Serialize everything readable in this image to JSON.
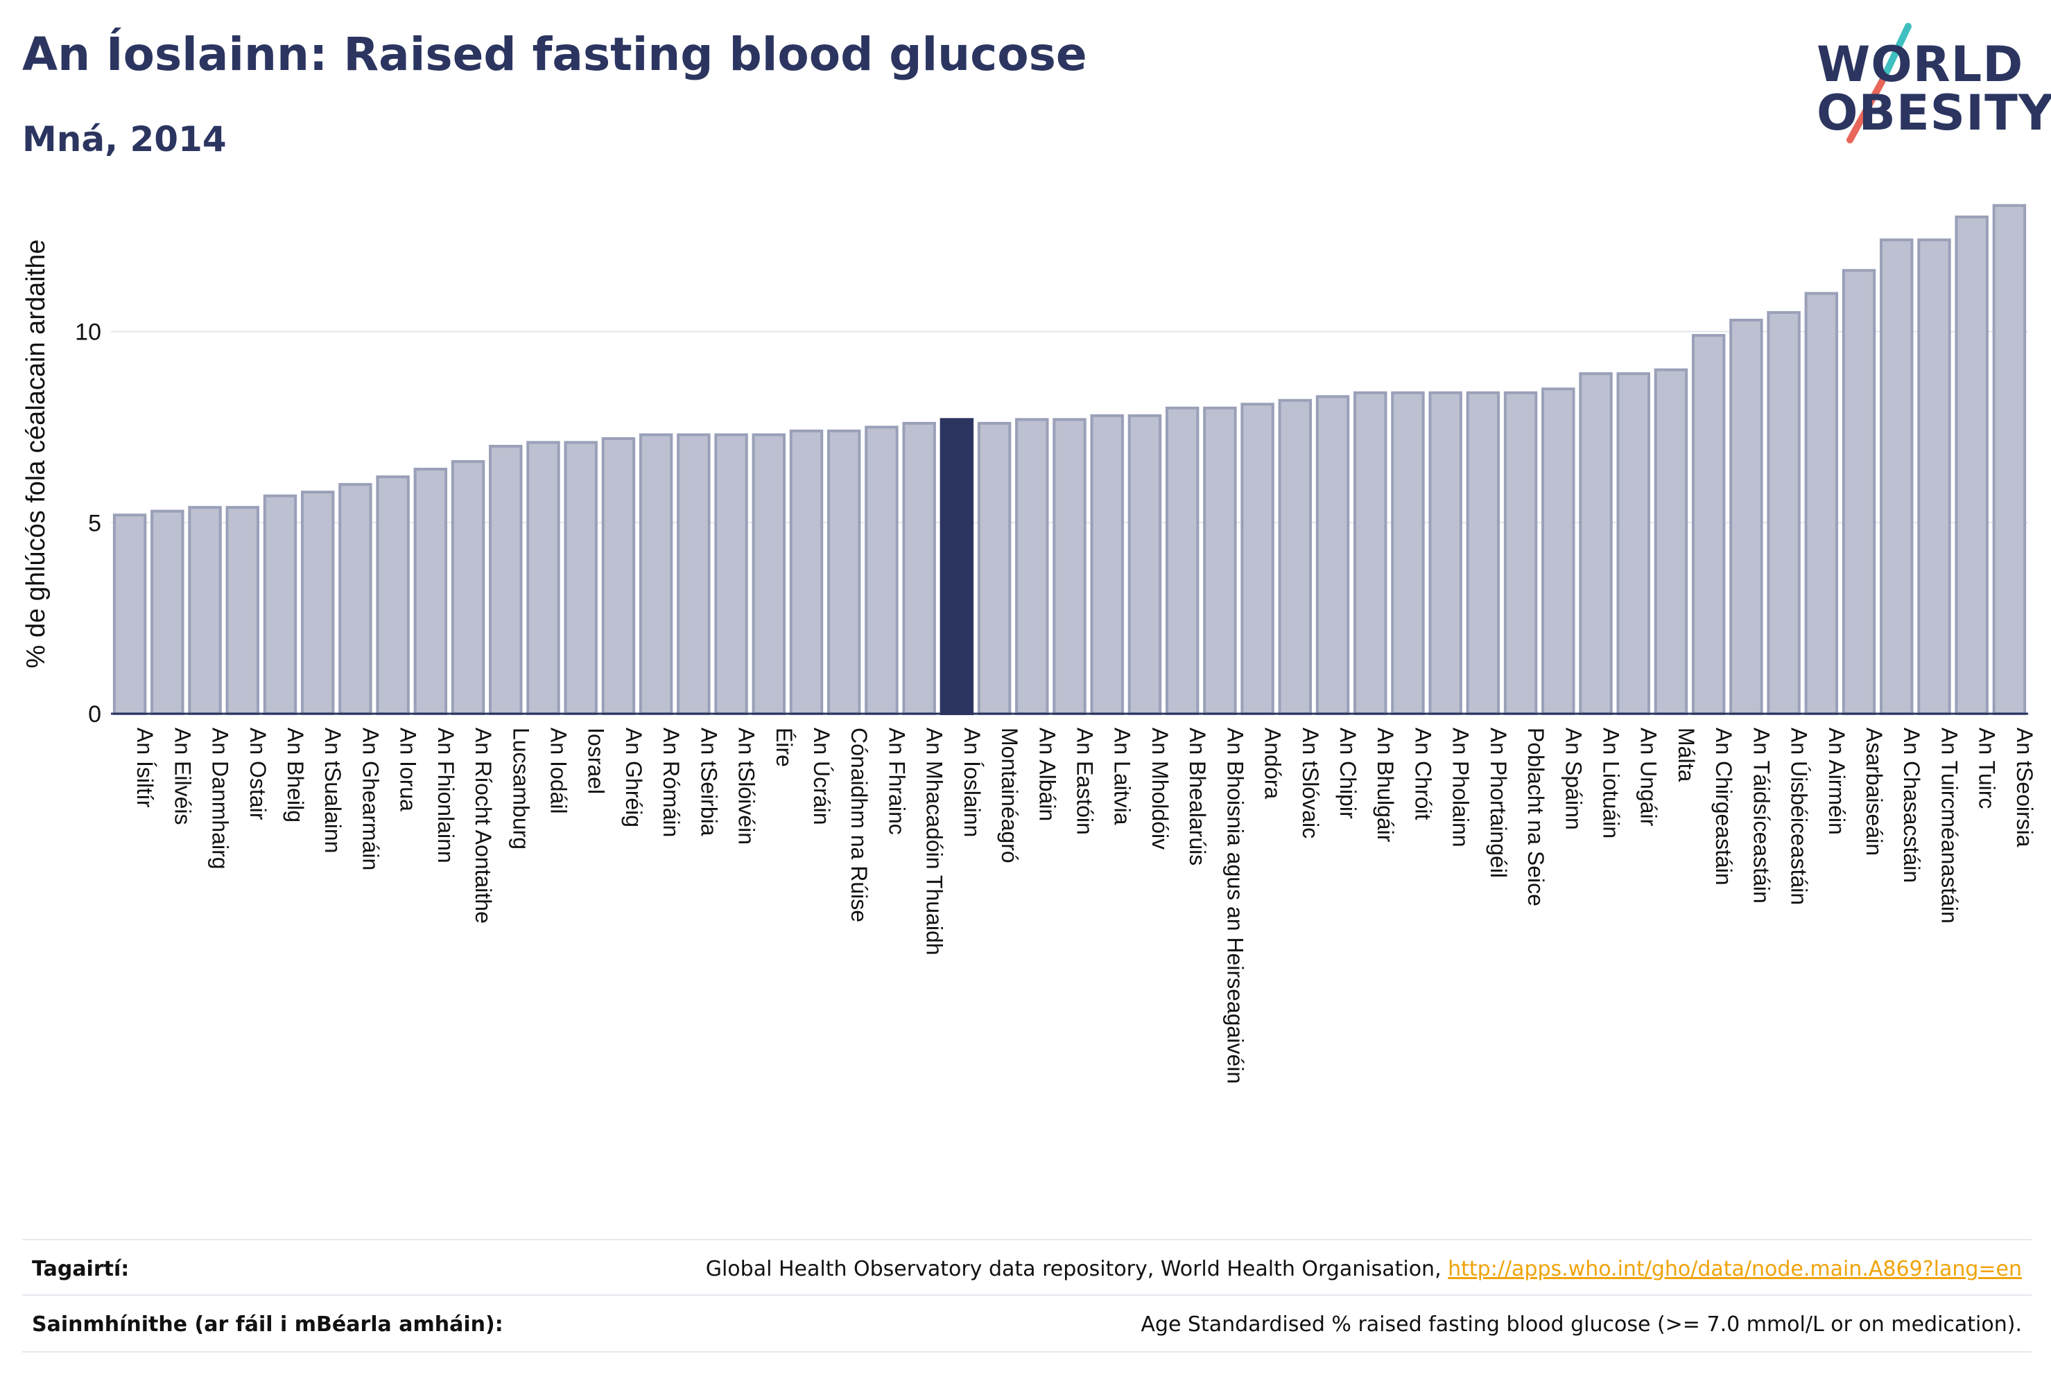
{
  "header": {
    "title": "An Íoslainn: Raised fasting blood glucose",
    "subtitle": "Mná, 2014"
  },
  "logo": {
    "line1": "WORLD",
    "line2": "OBESITY",
    "slash_colors": [
      "#3fbfbf",
      "#e8665a"
    ]
  },
  "colors": {
    "bar": "#bcc0d0",
    "bar_border": "#9aa0b8",
    "highlight": "#2b3560",
    "text": "#2b3560",
    "link": "#f0a30a"
  },
  "chart_data": {
    "type": "bar",
    "ylabel": "% de ghlúcós fola céalacain ardaithe",
    "ylim": [
      0,
      13.6
    ],
    "yticks": [
      0,
      5,
      10
    ],
    "grid": true,
    "highlight": "An Íoslainn",
    "categories": [
      "An Ísiltír",
      "An Eilvéis",
      "An Danmhairg",
      "An Ostair",
      "An Bheilg",
      "An tSualainn",
      "An Ghearmáin",
      "An Iorua",
      "An Fhionlainn",
      "An Ríocht Aontaithe",
      "Lucsamburg",
      "An Iodáil",
      "Iosrael",
      "An Ghréig",
      "An Rómáin",
      "An tSeirbia",
      "An tSlóivéin",
      "Éire",
      "An Úcráin",
      "Cónaidhm na Rúise",
      "An Fhrainc",
      "An Mhacadóin Thuaidh",
      "An Íoslainn",
      "Montainéagró",
      "An Albáin",
      "An Eastóin",
      "An Laitvia",
      "An Mholdóiv",
      "An Bhealarúis",
      "An Bhoisnia agus an Heirseagaivéin",
      "Andóra",
      "An tSlóvaic",
      "An Chipir",
      "An Bhulgáir",
      "An Chróit",
      "An Pholainn",
      "An Phortaingéil",
      "Poblacht na Seice",
      "An Spáinn",
      "An Liotuáin",
      "An Ungáir",
      "Málta",
      "An Chirgeastáin",
      "An Táidsíceastáin",
      "An Úisbéiceastáin",
      "An Airméin",
      "Asarbaiseáin",
      "An Chasacstáin",
      "An Tuircméanastáin",
      "An Tuirc",
      "An tSeoirsia"
    ],
    "values": [
      5.2,
      5.3,
      5.4,
      5.4,
      5.7,
      5.8,
      6.0,
      6.2,
      6.4,
      6.6,
      7.0,
      7.1,
      7.1,
      7.2,
      7.3,
      7.3,
      7.3,
      7.3,
      7.4,
      7.4,
      7.5,
      7.6,
      7.7,
      7.6,
      7.7,
      7.7,
      7.8,
      7.8,
      8.0,
      8.0,
      8.1,
      8.2,
      8.3,
      8.4,
      8.4,
      8.4,
      8.4,
      8.4,
      8.5,
      8.9,
      8.9,
      9.0,
      9.9,
      10.3,
      10.5,
      11.0,
      11.6,
      12.4,
      12.4,
      13.0,
      13.3
    ]
  },
  "references": {
    "sources_label": "Tagairtí:",
    "sources_text": "Global Health Observatory data repository, World Health Organisation, ",
    "sources_link": "http://apps.who.int/gho/data/node.main.A869?lang=en",
    "definitions_label": "Sainmhínithe (ar fáil i mBéarla amháin):",
    "definitions_text": "Age Standardised % raised fasting blood glucose (>= 7.0 mmol/L or on medication)."
  }
}
